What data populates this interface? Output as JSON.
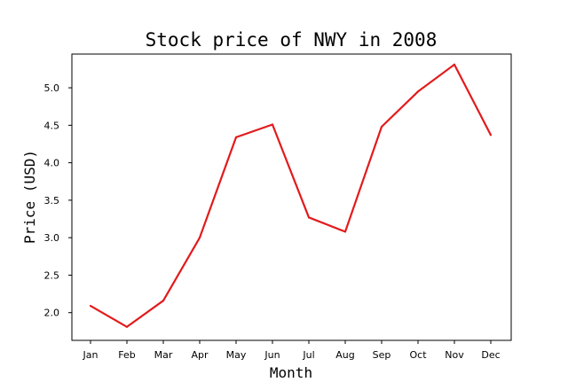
{
  "chart_data": {
    "type": "line",
    "title": "Stock price of NWY in 2008",
    "xlabel": "Month",
    "ylabel": "Price (USD)",
    "categories": [
      "Jan",
      "Feb",
      "Mar",
      "Apr",
      "May",
      "Jun",
      "Jul",
      "Aug",
      "Sep",
      "Oct",
      "Nov",
      "Dec"
    ],
    "series": [
      {
        "color": "#e31a1c",
        "values": [
          2.09,
          1.81,
          2.16,
          3.0,
          4.34,
          4.51,
          3.27,
          3.08,
          4.48,
          4.95,
          5.31,
          4.37
        ]
      }
    ],
    "yticks": [
      2.0,
      2.5,
      3.0,
      3.5,
      4.0,
      4.5,
      5.0
    ],
    "ytick_labels": [
      "2.0",
      "2.5",
      "3.0",
      "3.5",
      "4.0",
      "4.5",
      "5.0"
    ],
    "ylim": [
      1.63,
      5.45
    ],
    "grid": false,
    "legend": "none"
  }
}
